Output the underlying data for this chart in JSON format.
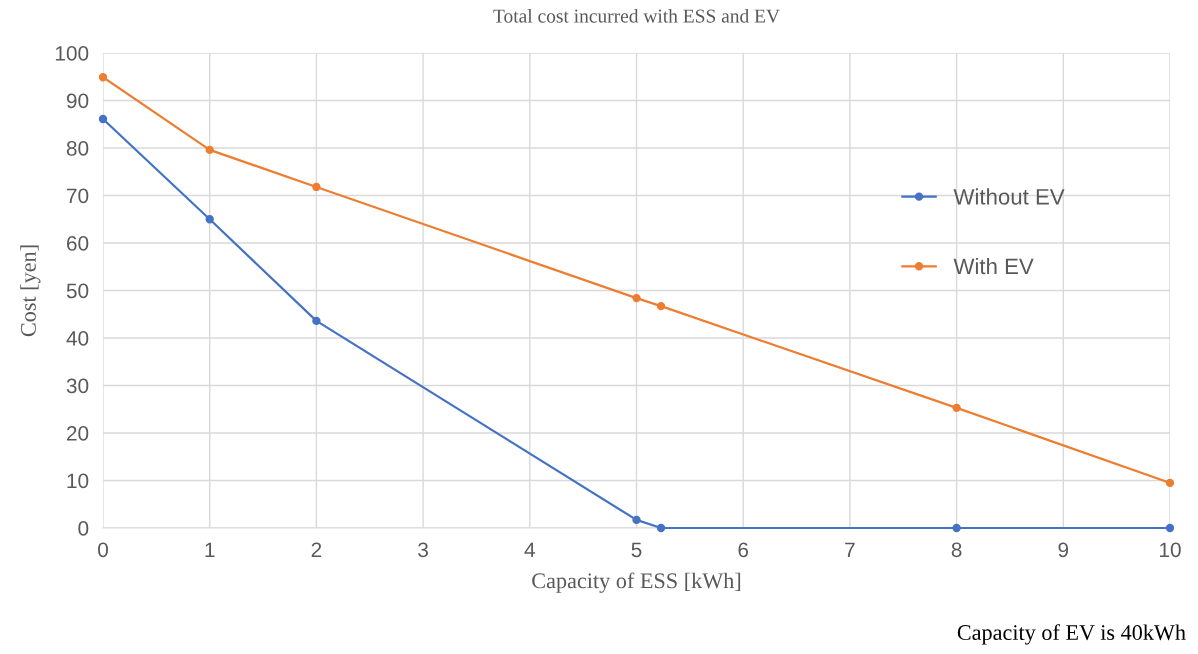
{
  "chart_data": {
    "type": "line",
    "title": "Total cost incurred with ESS and EV",
    "xlabel": "Capacity of ESS [kWh]",
    "ylabel": "Cost [yen]",
    "annotations": [
      "Capacity of EV is 40kWh"
    ],
    "series": [
      {
        "name": "Without EV",
        "color": "#4472c4",
        "x": [
          0,
          1,
          2,
          5,
          5.23,
          8,
          10
        ],
        "values": [
          86.1,
          65.0,
          43.6,
          1.7,
          0,
          0,
          0
        ]
      },
      {
        "name": "With EV",
        "color": "#ed7d31",
        "x": [
          0,
          1,
          2,
          5,
          5.23,
          8,
          10
        ],
        "values": [
          94.9,
          79.6,
          71.8,
          48.4,
          46.7,
          25.3,
          9.5
        ]
      }
    ],
    "xlim": [
      0,
      10
    ],
    "xticks": [
      0,
      1,
      2,
      3,
      4,
      5,
      6,
      7,
      8,
      9,
      10
    ],
    "ylim": [
      0,
      100
    ],
    "yticks": [
      0,
      10,
      20,
      30,
      40,
      50,
      60,
      70,
      80,
      90,
      100
    ],
    "grid": true,
    "legend": "right",
    "marker": "circle",
    "line_style": "solid"
  }
}
